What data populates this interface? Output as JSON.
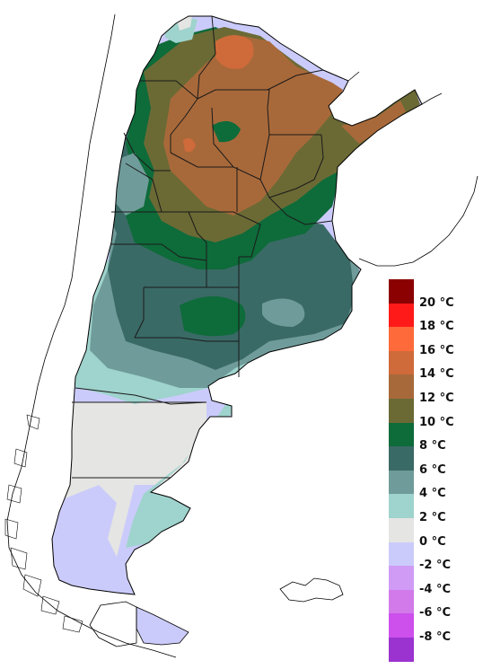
{
  "map": {
    "colors": {
      "ocean": "#ffffff",
      "coast_line": "#000000",
      "province_line": "#1a1a1a"
    }
  },
  "legend": {
    "bins": [
      {
        "color": "#8b0000",
        "label": "20 °C"
      },
      {
        "color": "#ff1a1a",
        "label": "18 °C"
      },
      {
        "color": "#ff6a3a",
        "label": "16 °C"
      },
      {
        "color": "#cf6a3a",
        "label": "14 °C"
      },
      {
        "color": "#a8693a",
        "label": "12 °C"
      },
      {
        "color": "#6b6a35",
        "label": "10 °C"
      },
      {
        "color": "#0e6b3a",
        "label": "8 °C"
      },
      {
        "color": "#3a6a66",
        "label": "6 °C"
      },
      {
        "color": "#6f9c9a",
        "label": "4 °C"
      },
      {
        "color": "#9fd3cd",
        "label": "2 °C"
      },
      {
        "color": "#e5e5e3",
        "label": "0 °C"
      },
      {
        "color": "#cbcbfb",
        "label": "-2 °C"
      },
      {
        "color": "#cf9bf5",
        "label": "-4 °C"
      },
      {
        "color": "#d27ae9",
        "label": "-6 °C"
      },
      {
        "color": "#cd4fec",
        "label": "-8 °C"
      },
      {
        "color": "#9a33cf",
        "label": ""
      }
    ]
  }
}
